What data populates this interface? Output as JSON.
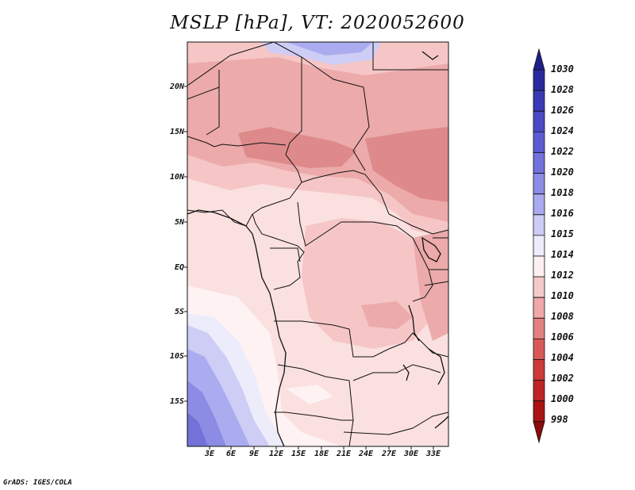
{
  "title": "MSLP [hPa], VT: 2020052600",
  "credit": "GrADS: IGES/COLA",
  "map": {
    "variable": "MSLP",
    "units": "hPa",
    "valid_time": "2020052600",
    "lat_labels": [
      "20N",
      "15N",
      "10N",
      "5N",
      "EQ",
      "5S",
      "10S",
      "15S"
    ],
    "lon_labels": [
      "3E",
      "6E",
      "9E",
      "12E",
      "15E",
      "18E",
      "21E",
      "24E",
      "27E",
      "30E",
      "33E"
    ]
  },
  "colorbar": {
    "labels": [
      "1030",
      "1028",
      "1026",
      "1024",
      "1022",
      "1020",
      "1018",
      "1016",
      "1015",
      "1014",
      "1012",
      "1010",
      "1008",
      "1006",
      "1004",
      "1002",
      "1000",
      "998"
    ],
    "colors": [
      "#1f1f8a",
      "#2a2aa0",
      "#3a3ab5",
      "#4a4ac4",
      "#5c5cd2",
      "#7272dc",
      "#8c8ce6",
      "#aaaaf0",
      "#ccccf6",
      "#ececfb",
      "#fdf0f0",
      "#f7caca",
      "#f0a8a8",
      "#e28080",
      "#d85858",
      "#cc3a3a",
      "#be2424",
      "#aa1414",
      "#8c0a0a"
    ]
  },
  "colors": {
    "border": "#111111",
    "very_low": "#de8a8a",
    "low": "#ecaaaa",
    "mid_low": "#f6c6c6",
    "near_1012": "#fbe0e0",
    "near_1014": "#fff2f2",
    "high_1015": "#ececfb",
    "high_1016": "#cdcdf6",
    "high_1018": "#ababef",
    "high_1020": "#8c8ce4",
    "high_1022": "#7272d8"
  }
}
